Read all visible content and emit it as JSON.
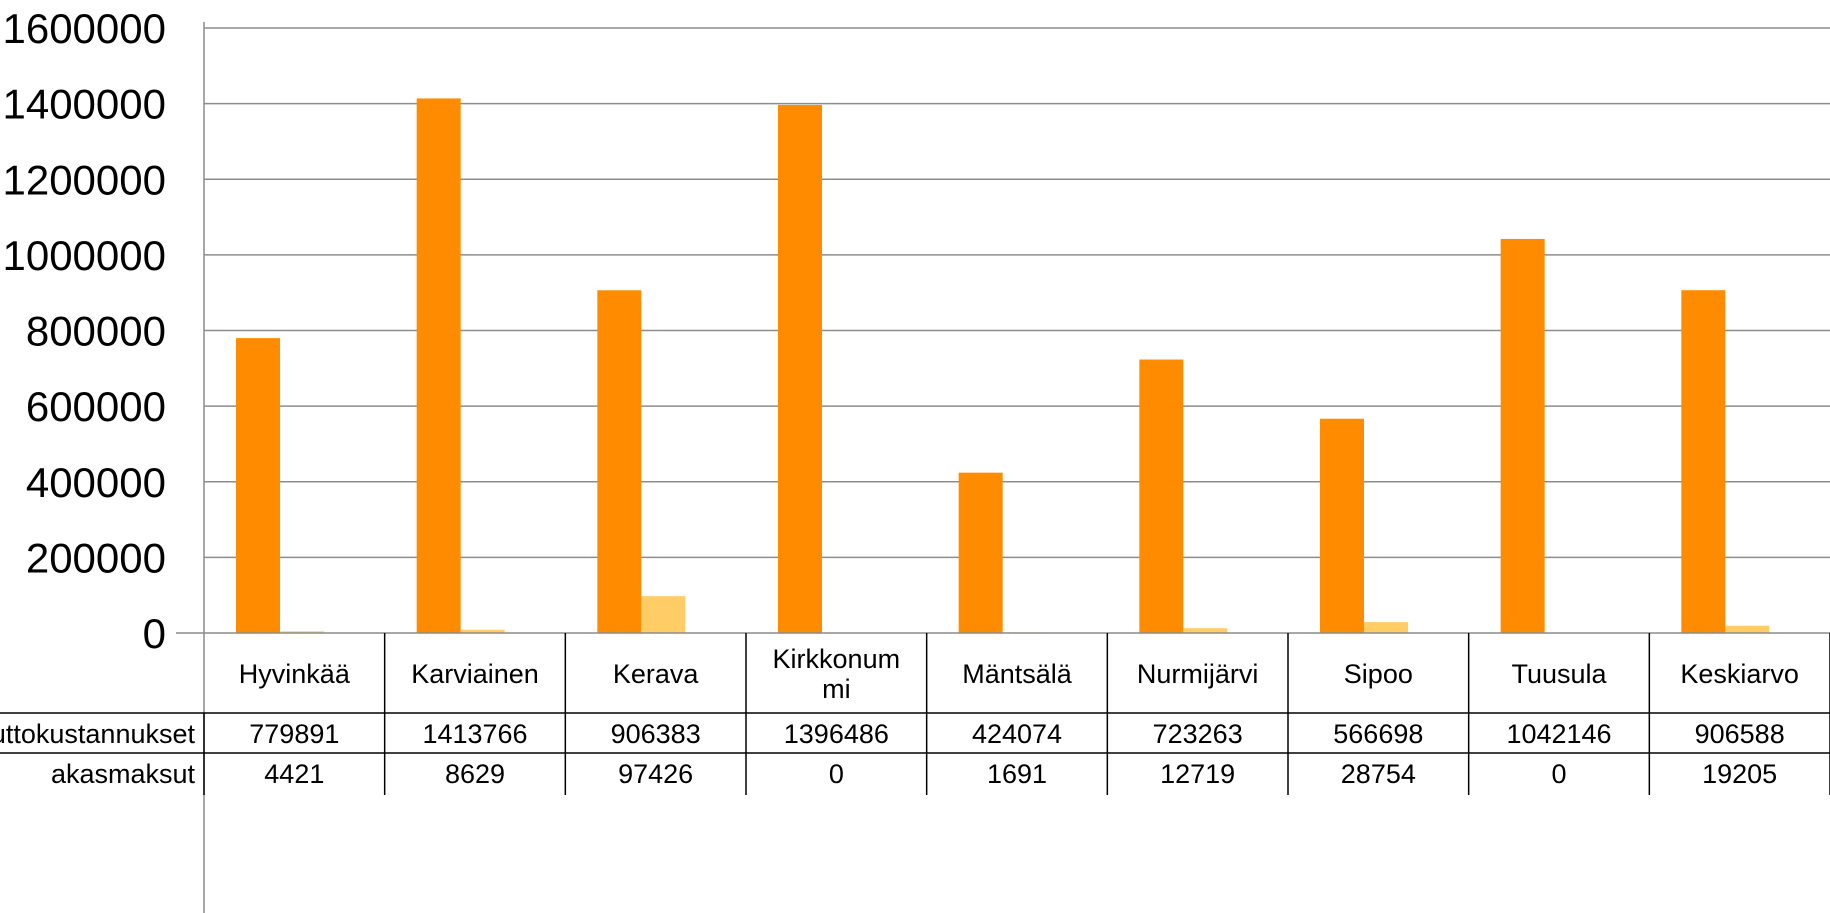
{
  "chart_data": {
    "type": "bar",
    "categories": [
      "Hyvinkää",
      "Karviainen",
      "Kerava",
      "Kirkkonum mi",
      "Mäntsälä",
      "Nurmijärvi",
      "Sipoo",
      "Tuusula",
      "Keskiarvo"
    ],
    "series": [
      {
        "name": "uttokustannukset",
        "color": "#ff8c00",
        "values": [
          779891,
          1413766,
          906383,
          1396486,
          424074,
          723263,
          566698,
          1042146,
          906588
        ]
      },
      {
        "name": "akasmaksut",
        "color": "#ffcc66",
        "values": [
          4421,
          8629,
          97426,
          0,
          1691,
          12719,
          28754,
          0,
          19205
        ]
      }
    ],
    "ylim": [
      0,
      1600000
    ],
    "yticks": [
      "0",
      "200000",
      "400000",
      "600000",
      "800000",
      "1000000",
      "1200000",
      "1400000",
      "1600000"
    ],
    "grid": true,
    "legend": "data-table"
  }
}
